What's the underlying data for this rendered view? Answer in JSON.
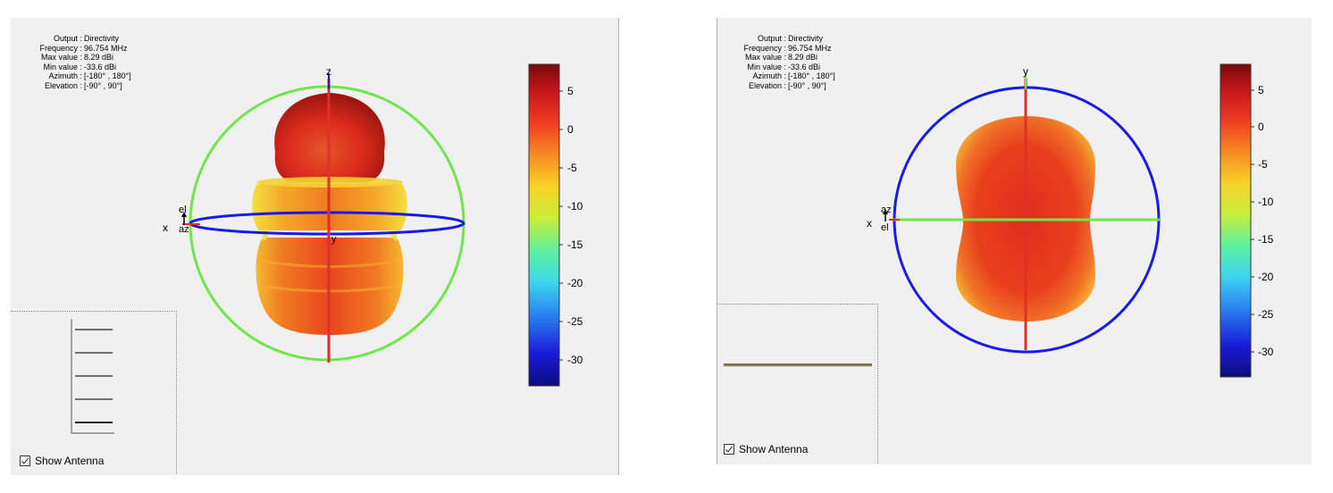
{
  "left_panel": {
    "info": {
      "keys": [
        "Output :",
        "Frequency :",
        "Max value :",
        "Min value :",
        "Azimuth :",
        "Elevation :"
      ],
      "values": [
        "Directivity",
        "96.754 MHz",
        "8.29 dBi",
        "-33.6 dBi",
        "[-180° , 180°]",
        "[-90° , 90°]"
      ]
    },
    "axis_labels": {
      "vertical": "z",
      "horizontal": "x",
      "depth": "y",
      "el": "el",
      "az": "az"
    },
    "colorbar_ticks": [
      "5",
      "0",
      "-5",
      "-10",
      "-15",
      "-20",
      "-25",
      "-30"
    ],
    "show_antenna_label": "Show Antenna",
    "show_antenna_checked": true
  },
  "right_panel": {
    "info": {
      "keys": [
        "Output :",
        "Frequency :",
        "Max value :",
        "Min value :",
        "Azimuth :",
        "Elevation :"
      ],
      "values": [
        "Directivity",
        "96.754 MHz",
        "8.29 dBi",
        "-33.6 dBi",
        "[-180° , 180°]",
        "[-90° , 90°]"
      ]
    },
    "axis_labels": {
      "vertical": "y",
      "horizontal": "x",
      "az": "az",
      "el": "el"
    },
    "colorbar_ticks": [
      "5",
      "0",
      "-5",
      "-10",
      "-15",
      "-20",
      "-25",
      "-30"
    ],
    "show_antenna_label": "Show Antenna",
    "show_antenna_checked": true
  },
  "colors": {
    "panel_bg": "#f0f0f0",
    "sphere_green": "#6fe64a",
    "sphere_blue": "#1a1ae6",
    "axis_red": "#e0302a",
    "pattern_red": "#e8401e",
    "pattern_orange": "#f07a20",
    "pattern_yellow": "#f2c82a"
  },
  "colorbar_range": [
    -33.6,
    8.29
  ]
}
